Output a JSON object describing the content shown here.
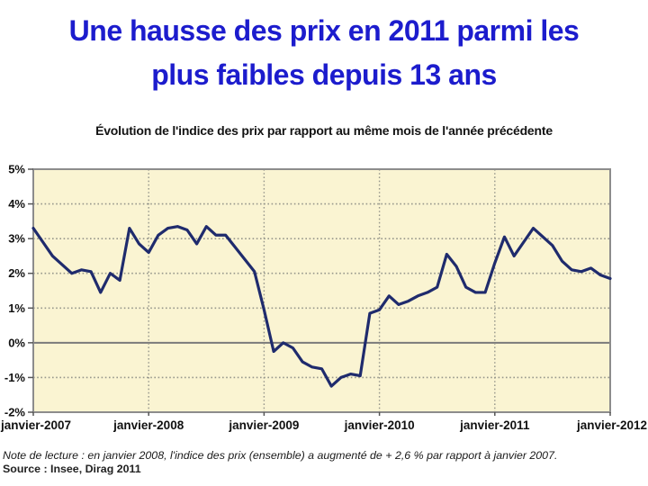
{
  "title": {
    "line1": "Une hausse des prix en 2011 parmi les",
    "line2": "plus faibles depuis 13 ans"
  },
  "chart": {
    "subtitle": "Évolution de l'indice des prix par rapport au même mois de l'année précédente",
    "note": "Note de lecture : en janvier 2008, l'indice des prix (ensemble) a augmenté de + 2,6 % par rapport à janvier 2007.",
    "source": "Source : Insee, Dirag 2011"
  },
  "colors": {
    "title_blue": "#1c1ccd",
    "line_navy": "#1f2b6d",
    "plot_background": "#faf4d2",
    "grid_gray": "#97978c",
    "border_gray": "#8c8c8c",
    "zero_line_gray": "#7a7a7a"
  },
  "chart_data": {
    "type": "line",
    "title": "Évolution de l'indice des prix par rapport au même mois de l'année précédente",
    "xlabel": "",
    "ylabel": "",
    "ylim": [
      -2,
      5
    ],
    "grid": true,
    "frequency": "monthly",
    "x_start": "janvier 2007",
    "x_end": "janvier 2012",
    "x_tick_labels": [
      "janvier-2007",
      "janvier-2008",
      "janvier-2009",
      "janvier-2010",
      "janvier-2011",
      "janvier-2012"
    ],
    "x_tick_months": [
      0,
      12,
      24,
      36,
      48,
      60
    ],
    "y_tick_labels": [
      "5%",
      "4%",
      "3%",
      "2%",
      "1%",
      "0%",
      "-1%",
      "-2%"
    ],
    "y_tick_values": [
      5,
      4,
      3,
      2,
      1,
      0,
      -1,
      -2
    ],
    "series": [
      {
        "name": "Indice des prix (ensemble), glissement annuel en %",
        "values_pct": [
          3.3,
          2.9,
          2.5,
          2.25,
          2.0,
          2.1,
          2.05,
          1.45,
          2.0,
          1.8,
          3.3,
          2.85,
          2.6,
          3.1,
          3.3,
          3.35,
          3.25,
          2.85,
          3.35,
          3.1,
          3.1,
          2.75,
          2.4,
          2.05,
          0.95,
          -0.25,
          0.0,
          -0.15,
          -0.55,
          -0.7,
          -0.75,
          -1.25,
          -1.0,
          -0.9,
          -0.95,
          0.85,
          0.95,
          1.35,
          1.1,
          1.2,
          1.35,
          1.45,
          1.6,
          2.55,
          2.2,
          1.6,
          1.45,
          1.45,
          2.3,
          3.05,
          2.5,
          2.9,
          3.3,
          3.05,
          2.8,
          2.35,
          2.1,
          2.05,
          2.15,
          1.95,
          1.85
        ]
      }
    ],
    "annotations": [
      "janvier 2008 = +2,6 % vs janvier 2007"
    ]
  }
}
